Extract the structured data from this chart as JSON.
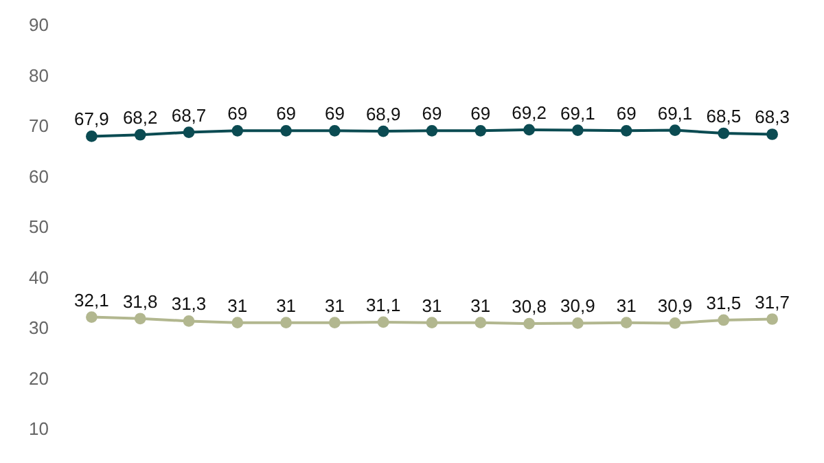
{
  "chart_data": {
    "type": "line",
    "categories": [
      null,
      null,
      null,
      null,
      null,
      null,
      null,
      null,
      null,
      null,
      null,
      null,
      null,
      null,
      null
    ],
    "series": [
      {
        "color": "#0b4b52",
        "values": [
          67.9,
          68.2,
          68.7,
          69,
          69,
          69,
          68.9,
          69,
          69,
          69.2,
          69.1,
          69,
          69.1,
          68.5,
          68.3
        ],
        "value_labels": [
          "67,9",
          "68,2",
          "68,7",
          "69",
          "69",
          "69",
          "68,9",
          "69",
          "69",
          "69,2",
          "69,1",
          "69",
          "69,1",
          "68,5",
          "68,3"
        ]
      },
      {
        "color": "#b2b78f",
        "values": [
          32.1,
          31.8,
          31.3,
          31,
          31,
          31,
          31.1,
          31,
          31,
          30.8,
          30.9,
          31,
          30.9,
          31.5,
          31.7
        ],
        "value_labels": [
          "32,1",
          "31,8",
          "31,3",
          "31",
          "31",
          "31",
          "31,1",
          "31",
          "31",
          "30,8",
          "30,9",
          "31",
          "30,9",
          "31,5",
          "31,7"
        ]
      }
    ],
    "ylim": [
      10,
      90
    ],
    "yticks": [
      10,
      20,
      30,
      40,
      50,
      60,
      70,
      80,
      90
    ],
    "tick_labels": "y",
    "marker": "circle",
    "line_style": "solid"
  }
}
